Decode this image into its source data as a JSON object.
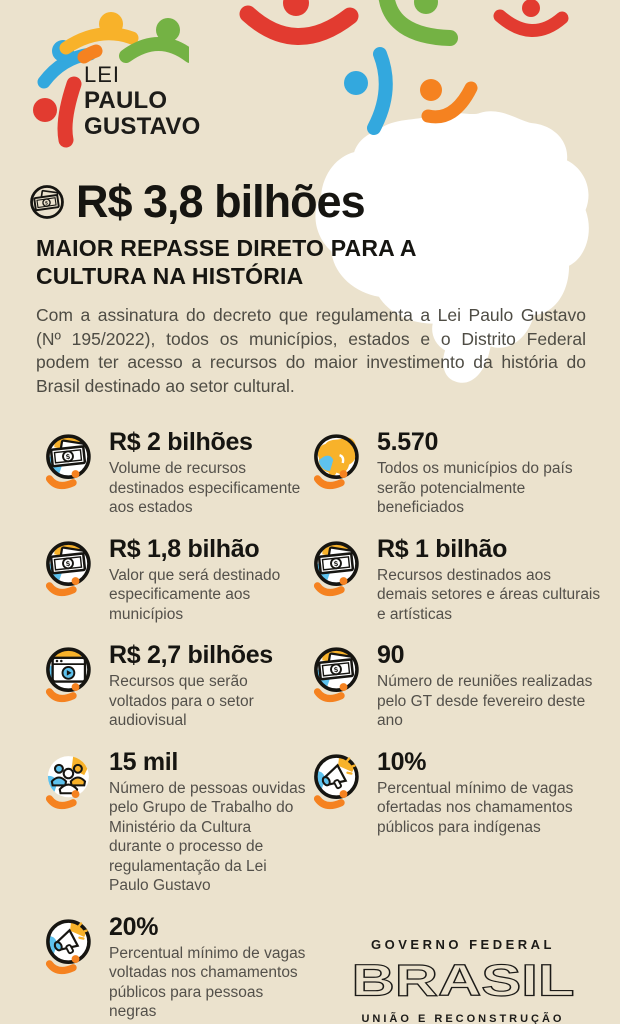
{
  "page": {
    "background": "#ebe2cd"
  },
  "colors": {
    "black": "#161511",
    "text_gray": "#53504a",
    "red": "#e23b30",
    "green": "#74b244",
    "blue": "#33a8de",
    "light_blue": "#5ec2ee",
    "orange": "#f58220",
    "yellow": "#f8b22a",
    "map_white": "#ffffff"
  },
  "logo": {
    "line1": "LEI",
    "line2": "PAULO",
    "line3": "GUSTAVO"
  },
  "headline": {
    "icon": "money-banknote-icon",
    "value": "R$ 3,8 bilhões",
    "subtitle_line1": "MAIOR REPASSE DIRETO PARA A",
    "subtitle_line2": "CULTURA NA HISTÓRIA"
  },
  "intro": "Com a assinatura do decreto que regulamenta a Lei Paulo Gustavo (Nº 195/2022), todos os municípios, estados e o Distrito Federal podem ter acesso a recursos do maior investimento da história do Brasil destinado ao setor cultural.",
  "stats": [
    {
      "icon": "money-icon",
      "value": "R$ 2 bilhões",
      "description": "Volume de recursos destinados especificamente aos estados"
    },
    {
      "icon": "brazil-map-icon",
      "value": "5.570",
      "description": "Todos os municípios do país serão potencialmente beneficiados"
    },
    {
      "icon": "money-icon",
      "value": "R$ 1,8 bilhão",
      "description": "Valor que será destinado especificamente aos municípios"
    },
    {
      "icon": "money-icon",
      "value": "R$ 1 bilhão",
      "description": "Recursos destinados aos demais setores e áreas culturais e artísticas"
    },
    {
      "icon": "video-player-icon",
      "value": "R$ 2,7 bilhões",
      "description": "Recursos que serão voltados para o setor audiovisual"
    },
    {
      "icon": "money-icon",
      "value": "90",
      "description": "Número de reuniões realizadas pelo GT desde fevereiro deste ano"
    },
    {
      "icon": "people-group-icon",
      "value": "15 mil",
      "description": "Número de pessoas ouvidas pelo Grupo de Trabalho do Ministério da Cultura durante o processo de regulamentação da Lei Paulo Gustavo"
    },
    {
      "icon": "megaphone-icon",
      "value": "10%",
      "description": "Percentual mínimo de vagas ofertadas nos chamamentos públicos para indígenas"
    },
    {
      "icon": "megaphone-icon",
      "value": "20%",
      "description": "Percentual mínimo de vagas voltadas nos chamamentos públicos para pessoas negras"
    }
  ],
  "government": {
    "line1": "GOVERNO FEDERAL",
    "wordmark": "BRASIL",
    "line2": "UNIÃO E RECONSTRUÇÃO"
  }
}
